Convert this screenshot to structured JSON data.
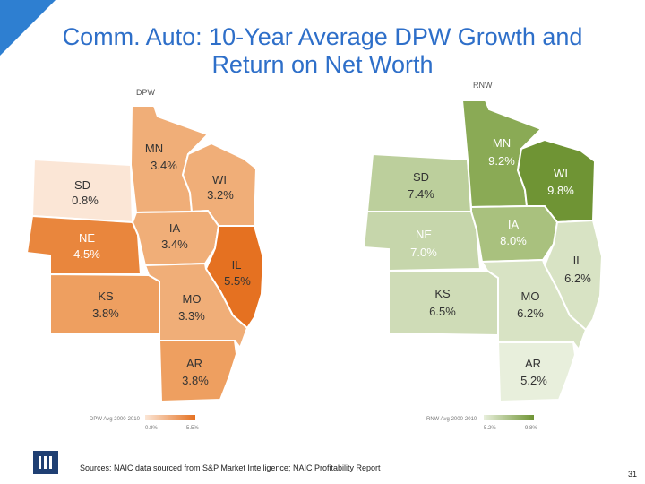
{
  "title_line1": "Comm. Auto: 10-Year Average DPW Growth and",
  "title_line2": "Return on Net Worth",
  "left_map": {
    "label": "DPW",
    "legend_caption": "DPW Avg 2000-2010",
    "legend_min": "0.8%",
    "legend_max": "5.5%",
    "states": [
      {
        "abbr": "MN",
        "value": "3.4%",
        "fill": "#f0ae78"
      },
      {
        "abbr": "SD",
        "value": "0.8%",
        "fill": "#fbe6d6"
      },
      {
        "abbr": "WI",
        "value": "3.2%",
        "fill": "#f0ae78"
      },
      {
        "abbr": "IA",
        "value": "3.4%",
        "fill": "#f0ae78"
      },
      {
        "abbr": "NE",
        "value": "4.5%",
        "fill": "#e9863d"
      },
      {
        "abbr": "IL",
        "value": "5.5%",
        "fill": "#e57121"
      },
      {
        "abbr": "KS",
        "value": "3.8%",
        "fill": "#ee9f60"
      },
      {
        "abbr": "MO",
        "value": "3.3%",
        "fill": "#f0ae78"
      },
      {
        "abbr": "AR",
        "value": "3.8%",
        "fill": "#ee9f60"
      }
    ]
  },
  "right_map": {
    "label": "RNW",
    "legend_caption": "RNW Avg 2000-2010",
    "legend_min": "5.2%",
    "legend_max": "9.8%",
    "states": [
      {
        "abbr": "MN",
        "value": "9.2%",
        "fill": "#8aaa55"
      },
      {
        "abbr": "SD",
        "value": "7.4%",
        "fill": "#bccf9c"
      },
      {
        "abbr": "WI",
        "value": "9.8%",
        "fill": "#6f9434"
      },
      {
        "abbr": "IA",
        "value": "8.0%",
        "fill": "#a9c17e"
      },
      {
        "abbr": "NE",
        "value": "7.0%",
        "fill": "#c6d6ab"
      },
      {
        "abbr": "IL",
        "value": "6.2%",
        "fill": "#d8e3c4"
      },
      {
        "abbr": "KS",
        "value": "6.5%",
        "fill": "#cfdcb7"
      },
      {
        "abbr": "MO",
        "value": "6.2%",
        "fill": "#d8e3c4"
      },
      {
        "abbr": "AR",
        "value": "5.2%",
        "fill": "#e8efdc"
      }
    ]
  },
  "colors": {
    "title": "#2e6fc9",
    "corner_accent": "#2e7fd1",
    "logo": "#1f3f73",
    "dpw_legend_low": "#fbe6d6",
    "dpw_legend_high": "#e57121",
    "rnw_legend_low": "#e8efdc",
    "rnw_legend_high": "#6f9434",
    "label_on_light": "#333333",
    "label_on_dark": "#ffffff"
  },
  "logo_icon": "iii-logo-icon",
  "sources": "Sources: NAIC data sourced from S&P Market Intelligence; NAIC Profitability Report",
  "page_number": "31"
}
